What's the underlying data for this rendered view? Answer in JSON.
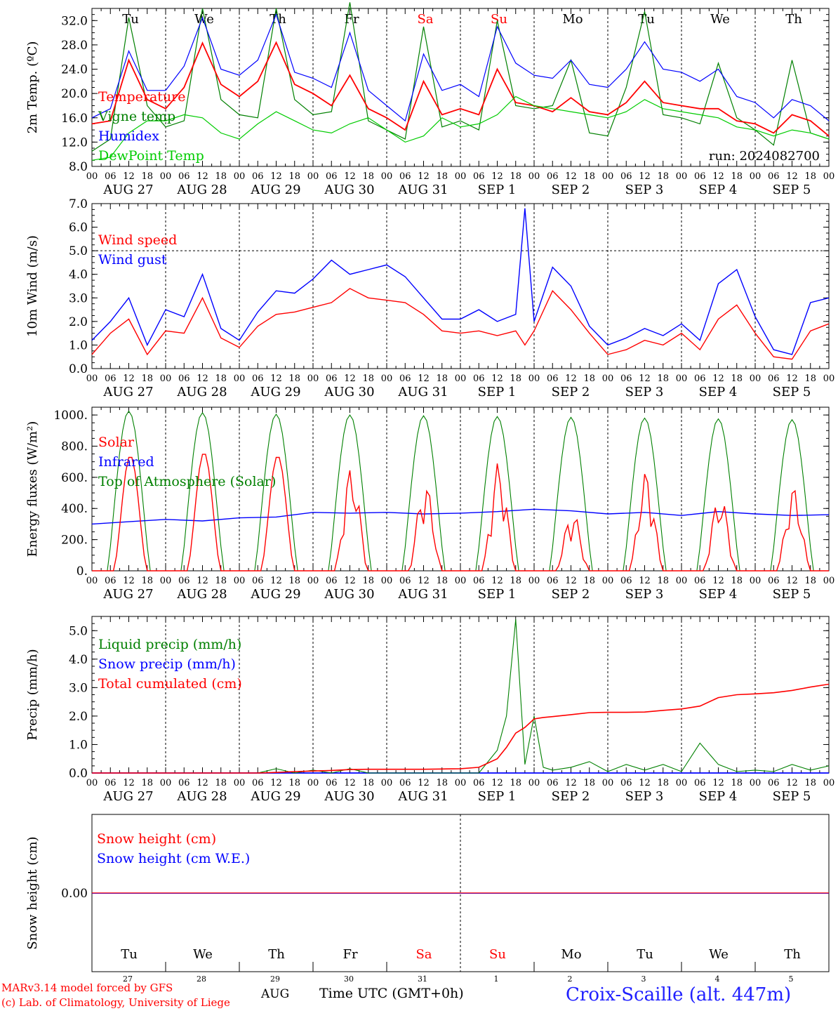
{
  "run_label": "run: 2024082700",
  "hour_ticks": [
    "00",
    "06",
    "12",
    "18"
  ],
  "final_hour": "00",
  "date_labels": [
    "AUG 27",
    "AUG 28",
    "AUG 29",
    "AUG 30",
    "AUG 31",
    "SEP  1",
    "SEP  2",
    "SEP  3",
    "SEP  4",
    "SEP  5"
  ],
  "weekdays": [
    "Tu",
    "We",
    "Th",
    "Fr",
    "Sa",
    "Su",
    "Mo",
    "Tu",
    "We",
    "Th"
  ],
  "weekend_color": "#ff0000",
  "day_numbers": [
    "27",
    "28",
    "29",
    "30",
    "31",
    "1",
    "2",
    "3",
    "4",
    "5"
  ],
  "month_label": "AUG",
  "x_axis_title": "Time UTC (GMT+0h)",
  "credits": [
    "MARv3.14 model forced by GFS",
    "(c) Lab. of Climatology, University of Liege"
  ],
  "station": "Croix-Scaille (alt. 447m)",
  "chart_data": [
    {
      "type": "line",
      "ylabel": "2m Temp. (ºC)",
      "ylim": [
        8,
        34
      ],
      "yticks": [
        "8.0",
        "12.0",
        "16.0",
        "20.0",
        "24.0",
        "28.0",
        "32.0"
      ],
      "ytick_values": [
        8,
        12,
        16,
        20,
        24,
        28,
        32
      ],
      "x_hours_from_start": [
        0,
        6,
        12,
        18,
        24,
        30,
        36,
        42,
        48,
        54,
        60,
        66,
        72,
        78,
        84,
        90,
        96,
        102,
        108,
        114,
        120,
        126,
        132,
        138,
        144,
        150,
        156,
        162,
        168,
        174,
        180,
        186,
        192,
        198,
        204,
        210,
        216,
        222,
        228,
        234,
        240
      ],
      "series": [
        {
          "name": "Temperature",
          "color": "#ff0000",
          "values": [
            15.0,
            15.5,
            25.5,
            19.0,
            17.5,
            21.0,
            28.3,
            21.5,
            19.5,
            22.0,
            28.4,
            21.5,
            20.0,
            18.0,
            23.0,
            17.5,
            16.0,
            14.0,
            22.0,
            16.5,
            17.5,
            16.5,
            24.0,
            18.5,
            18.0,
            17.0,
            19.3,
            17.0,
            16.5,
            18.5,
            22.0,
            18.5,
            18.0,
            17.5,
            17.5,
            15.5,
            15.0,
            13.5,
            16.5,
            15.5,
            13.0
          ]
        },
        {
          "name": "Vigne temp",
          "color": "#008000",
          "values": [
            10.5,
            12.5,
            32.5,
            18.0,
            14.5,
            15.5,
            34.0,
            19.0,
            16.5,
            16.0,
            34.0,
            19.0,
            16.5,
            17.0,
            35.0,
            15.5,
            14.0,
            12.5,
            31.0,
            14.5,
            15.5,
            14.0,
            32.0,
            18.0,
            17.5,
            18.0,
            25.5,
            13.5,
            13.0,
            21.0,
            33.5,
            16.5,
            16.0,
            15.0,
            25.0,
            16.0,
            14.0,
            11.5,
            25.5,
            13.5,
            12.5
          ]
        },
        {
          "name": "Humidex",
          "color": "#0000ff",
          "values": [
            16.0,
            17.5,
            27.0,
            20.5,
            20.5,
            24.5,
            32.5,
            24.0,
            23.0,
            25.5,
            33.0,
            23.5,
            22.5,
            21.0,
            30.0,
            20.5,
            18.0,
            15.5,
            26.5,
            20.5,
            21.5,
            19.5,
            31.0,
            25.0,
            23.0,
            22.5,
            25.5,
            21.5,
            21.0,
            24.0,
            28.5,
            24.0,
            23.5,
            22.0,
            24.0,
            19.5,
            18.5,
            16.0,
            19.0,
            18.0,
            15.5
          ]
        },
        {
          "name": "DewPoint Temp",
          "color": "#00cc00",
          "values": [
            9.0,
            9.5,
            13.5,
            15.5,
            15.5,
            16.5,
            16.0,
            13.5,
            12.5,
            15.0,
            17.0,
            15.5,
            14.0,
            13.5,
            15.0,
            16.0,
            14.0,
            12.0,
            13.0,
            16.0,
            14.5,
            15.0,
            16.5,
            19.5,
            18.0,
            17.5,
            17.0,
            16.5,
            16.0,
            17.0,
            19.0,
            17.5,
            17.0,
            16.5,
            16.0,
            14.5,
            14.0,
            13.0,
            14.0,
            13.5,
            12.5
          ]
        }
      ]
    },
    {
      "type": "line",
      "ylabel": "10m Wind (m/s)",
      "ylim": [
        0,
        7
      ],
      "yticks": [
        "0.0",
        "1.0",
        "2.0",
        "3.0",
        "4.0",
        "5.0",
        "6.0",
        "7.0"
      ],
      "ytick_values": [
        0,
        1,
        2,
        3,
        4,
        5,
        6,
        7
      ],
      "reference_line": 5,
      "x_hours_from_start": [
        0,
        6,
        12,
        18,
        24,
        30,
        36,
        42,
        48,
        54,
        60,
        66,
        72,
        78,
        84,
        90,
        96,
        102,
        108,
        114,
        120,
        126,
        132,
        138,
        141,
        144,
        150,
        156,
        162,
        168,
        174,
        180,
        186,
        192,
        198,
        204,
        210,
        216,
        222,
        228,
        234,
        240
      ],
      "series": [
        {
          "name": "Wind speed",
          "color": "#ff0000",
          "values": [
            0.6,
            1.5,
            2.1,
            0.6,
            1.6,
            1.5,
            3.0,
            1.3,
            0.9,
            1.8,
            2.3,
            2.4,
            2.6,
            2.8,
            3.4,
            3.0,
            2.9,
            2.8,
            2.3,
            1.6,
            1.5,
            1.6,
            1.4,
            1.6,
            1.0,
            1.6,
            3.3,
            2.5,
            1.5,
            0.6,
            0.8,
            1.2,
            1.0,
            1.5,
            0.8,
            2.1,
            2.7,
            1.5,
            0.5,
            0.4,
            1.6,
            1.9
          ]
        },
        {
          "name": "Wind gust",
          "color": "#0000ff",
          "values": [
            1.2,
            2.0,
            3.0,
            1.0,
            2.5,
            2.2,
            4.0,
            1.7,
            1.2,
            2.4,
            3.3,
            3.2,
            3.8,
            4.6,
            4.0,
            4.2,
            4.4,
            3.9,
            3.0,
            2.1,
            2.1,
            2.5,
            2.0,
            2.3,
            6.8,
            2.0,
            4.3,
            3.5,
            1.8,
            1.0,
            1.3,
            1.7,
            1.4,
            1.9,
            1.2,
            3.6,
            4.2,
            2.2,
            0.8,
            0.6,
            2.8,
            3.0
          ]
        }
      ]
    },
    {
      "type": "line",
      "ylabel": "Energy fluxes (W/m²)",
      "ylim": [
        0,
        1050
      ],
      "yticks": [
        "0.",
        "200.",
        "400.",
        "600.",
        "800.",
        "1000."
      ],
      "ytick_values": [
        0,
        200,
        400,
        600,
        800,
        1000
      ],
      "series": [
        {
          "name": "Solar",
          "color": "#ff0000",
          "daily_peaks_w_m2": [
            740,
            760,
            740,
            670,
            570,
            700,
            380,
            640,
            490,
            540
          ]
        },
        {
          "name": "Infrared",
          "color": "#0000ff",
          "values": [
            300,
            315,
            330,
            320,
            340,
            345,
            375,
            370,
            375,
            365,
            370,
            380,
            395,
            385,
            365,
            375,
            355,
            380,
            365,
            355,
            360
          ]
        },
        {
          "name": "Top of Atmosphere (Solar)",
          "color": "#008000",
          "daily_peaks_w_m2": [
            1025,
            1015,
            1005,
            1000,
            995,
            990,
            985,
            980,
            975,
            970
          ]
        }
      ]
    },
    {
      "type": "line",
      "ylabel": "Precip (mm/h)",
      "ylim": [
        0,
        5.5
      ],
      "yticks": [
        "0.0",
        "1.0",
        "2.0",
        "3.0",
        "4.0",
        "5.0"
      ],
      "ytick_values": [
        0,
        1,
        2,
        3,
        4,
        5
      ],
      "x_hours_from_start": [
        0,
        48,
        54,
        60,
        66,
        72,
        78,
        84,
        90,
        96,
        102,
        108,
        114,
        120,
        126,
        132,
        135,
        138,
        141,
        144,
        147,
        150,
        156,
        162,
        168,
        174,
        180,
        186,
        192,
        198,
        204,
        210,
        216,
        222,
        228,
        234,
        240
      ],
      "series": [
        {
          "name": "Liquid precip (mm/h)",
          "color": "#008000",
          "values": [
            0,
            0,
            0,
            0.15,
            0,
            0.1,
            0,
            0.15,
            0,
            0,
            0,
            0,
            0,
            0,
            0,
            0.8,
            2.0,
            5.4,
            0.3,
            2.0,
            0.2,
            0.1,
            0.2,
            0.4,
            0.05,
            0.3,
            0.1,
            0.3,
            0.05,
            1.05,
            0.3,
            0.05,
            0.1,
            0.05,
            0.3,
            0.1,
            0.25
          ]
        },
        {
          "name": "Snow precip (mm/h)",
          "color": "#0000ff",
          "values": [
            0,
            0,
            0,
            0,
            0,
            0,
            0,
            0,
            0,
            0,
            0,
            0,
            0,
            0,
            0,
            0,
            0,
            0,
            0,
            0,
            0,
            0,
            0,
            0,
            0,
            0,
            0,
            0,
            0,
            0,
            0,
            0,
            0,
            0,
            0,
            0,
            0
          ]
        },
        {
          "name": "Total cumulated (cm)",
          "color": "#ff0000",
          "values": [
            0,
            0,
            0,
            0.02,
            0.05,
            0.07,
            0.09,
            0.12,
            0.13,
            0.13,
            0.13,
            0.13,
            0.14,
            0.15,
            0.2,
            0.5,
            0.9,
            1.4,
            1.6,
            1.9,
            1.95,
            1.98,
            2.05,
            2.12,
            2.13,
            2.13,
            2.14,
            2.2,
            2.25,
            2.35,
            2.65,
            2.75,
            2.78,
            2.82,
            2.9,
            3.02,
            3.12
          ]
        }
      ]
    },
    {
      "type": "line",
      "ylabel": "Snow height (cm)",
      "ylim": [
        -1,
        1
      ],
      "yticks": [
        "0.00"
      ],
      "ytick_values": [
        0
      ],
      "series": [
        {
          "name": "Snow height (cm)",
          "color": "#ff0000",
          "values": [
            0,
            0
          ]
        },
        {
          "name": "Snow height (cm W.E.)",
          "color": "#0000ff",
          "values": [
            0,
            0
          ]
        }
      ]
    }
  ]
}
